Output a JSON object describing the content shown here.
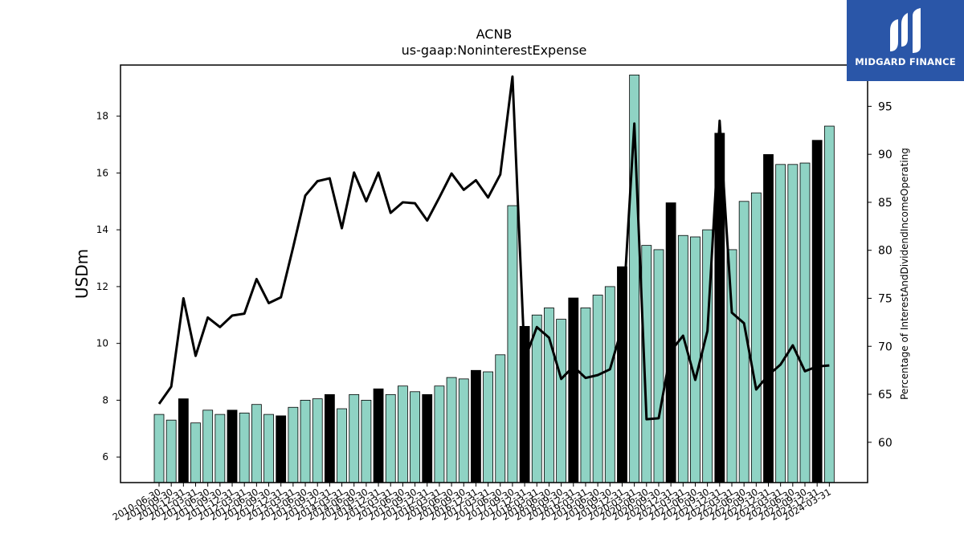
{
  "chart_data": {
    "type": "bar",
    "title": "ACNB",
    "subtitle": "us-gaap:NoninterestExpense",
    "ylabel": "USDm",
    "ylabel_right": "Percentage of InterestAndDividendIncomeOperating",
    "ylim": [
      5.1,
      19.8
    ],
    "ylim_right": [
      55.8,
      99.3
    ],
    "yticks": [
      6,
      8,
      10,
      12,
      14,
      16,
      18
    ],
    "yticks_right": [
      60,
      65,
      70,
      75,
      80,
      85,
      90,
      95
    ],
    "categories": [
      "2010-06-30",
      "2010-09-30",
      "2010-12-31",
      "2011-03-31",
      "2011-06-30",
      "2011-09-30",
      "2011-12-31",
      "2012-03-31",
      "2012-06-30",
      "2012-09-30",
      "2012-12-31",
      "2013-03-31",
      "2013-06-30",
      "2013-09-30",
      "2013-12-31",
      "2014-03-31",
      "2014-06-30",
      "2014-09-30",
      "2014-12-31",
      "2015-03-31",
      "2015-06-30",
      "2015-09-30",
      "2015-12-31",
      "2016-03-31",
      "2016-06-30",
      "2016-09-30",
      "2016-12-31",
      "2017-03-31",
      "2017-06-30",
      "2017-09-30",
      "2017-12-31",
      "2018-03-31",
      "2018-06-30",
      "2018-09-30",
      "2018-12-31",
      "2019-03-31",
      "2019-06-30",
      "2019-09-30",
      "2019-12-31",
      "2020-03-31",
      "2020-06-30",
      "2020-09-30",
      "2020-12-31",
      "2021-03-31",
      "2021-06-30",
      "2021-09-30",
      "2021-12-31",
      "2022-03-31",
      "2022-06-30",
      "2022-09-30",
      "2022-12-31",
      "2023-03-31",
      "2023-06-30",
      "2023-09-30",
      "2023-12-31",
      "2024-03-31"
    ],
    "series": [
      {
        "values": [
          7.5,
          7.3,
          8.05,
          7.2,
          7.65,
          7.5,
          7.65,
          7.55,
          7.85,
          7.5,
          7.45,
          7.75,
          8.0,
          8.05,
          8.2,
          7.7,
          8.2,
          8.0,
          8.4,
          8.2,
          8.5,
          8.3,
          8.2,
          8.5,
          8.8,
          8.75,
          9.05,
          9.0,
          9.6,
          14.85,
          10.6,
          11.0,
          11.25,
          10.85,
          11.6,
          11.25,
          11.7,
          12.0,
          12.7,
          19.45,
          13.45,
          13.3,
          14.95,
          13.8,
          13.75,
          14.0,
          17.4,
          13.3,
          15.0,
          15.3,
          16.65,
          16.3,
          16.3,
          16.35,
          17.15,
          17.65
        ],
        "highlight": [
          false,
          false,
          true,
          false,
          false,
          false,
          true,
          false,
          false,
          false,
          true,
          false,
          false,
          false,
          true,
          false,
          false,
          false,
          true,
          false,
          false,
          false,
          true,
          false,
          false,
          false,
          true,
          false,
          false,
          false,
          true,
          false,
          false,
          false,
          true,
          false,
          false,
          false,
          true,
          false,
          false,
          false,
          true,
          false,
          false,
          false,
          true,
          false,
          false,
          false,
          true,
          false,
          false,
          false,
          true,
          false
        ],
        "color": "#8fd3c4",
        "highlight_color": "#000000"
      },
      {
        "axis": "right",
        "type": "line",
        "values": [
          64.0,
          65.8,
          75.0,
          69.0,
          73.0,
          72.0,
          73.2,
          73.4,
          77.0,
          74.5,
          75.1,
          80.3,
          85.7,
          87.2,
          87.5,
          82.3,
          88.1,
          85.1,
          88.1,
          83.9,
          85.0,
          84.9,
          83.1,
          85.5,
          88.0,
          86.3,
          87.3,
          85.5,
          87.9,
          98.1,
          68.6,
          72.0,
          70.9,
          66.6,
          67.9,
          66.7,
          67.0,
          67.6,
          72.0,
          93.2,
          62.4,
          62.5,
          69.5,
          71.1,
          66.5,
          71.6,
          93.5,
          73.5,
          72.4,
          65.5,
          67.0,
          68.1,
          70.1,
          67.4,
          67.9,
          68.0
        ],
        "color": "#000000"
      }
    ],
    "grid": false,
    "legend": "none"
  },
  "logo": {
    "text": "MIDGARD FINANCE",
    "bg": "#2a56a8"
  }
}
